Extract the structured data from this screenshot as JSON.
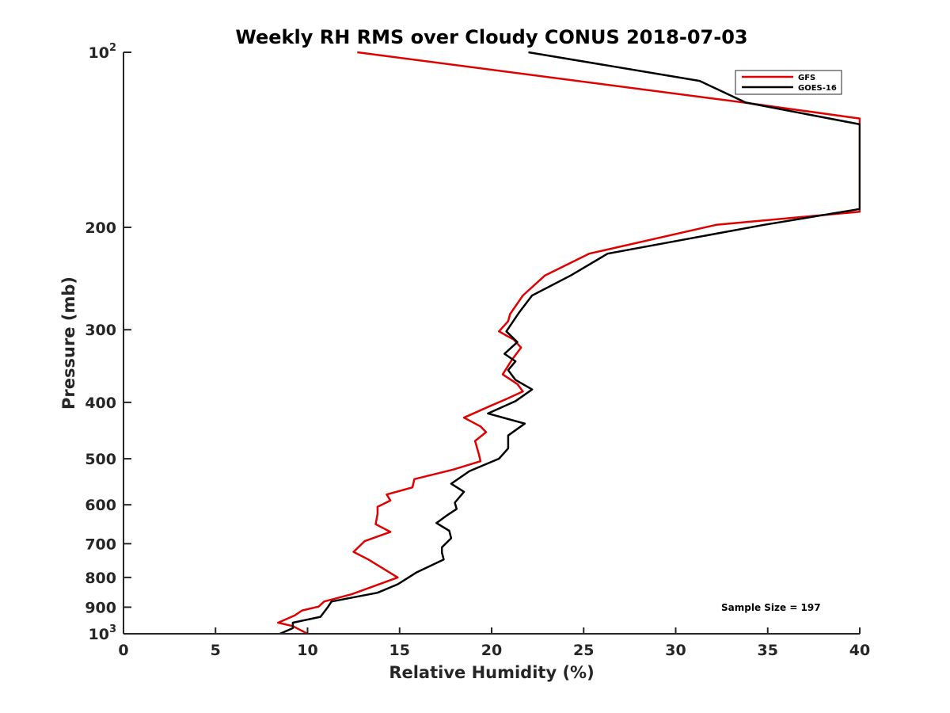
{
  "chart_data": {
    "type": "line",
    "title": "Weekly RH RMS over Cloudy CONUS 2018-07-03",
    "xlabel": "Relative Humidity (%)",
    "ylabel": "Pressure (mb)",
    "xlim": [
      0,
      40
    ],
    "ylim": [
      100,
      1000
    ],
    "y_scale": "log",
    "y_reversed": true,
    "x_ticks": [
      "0",
      "5",
      "10",
      "15",
      "20",
      "25",
      "30",
      "35",
      "40"
    ],
    "y_ticks": [
      {
        "value": 100,
        "base": "10",
        "exp": "2"
      },
      {
        "value": 200,
        "label": "200"
      },
      {
        "value": 300,
        "label": "300"
      },
      {
        "value": 400,
        "label": "400"
      },
      {
        "value": 500,
        "label": "500"
      },
      {
        "value": 600,
        "label": "600"
      },
      {
        "value": 700,
        "label": "700"
      },
      {
        "value": 800,
        "label": "800"
      },
      {
        "value": 900,
        "label": "900"
      },
      {
        "value": 1000,
        "base": "10",
        "exp": "3"
      }
    ],
    "legend": {
      "position": "top-right"
    },
    "annotation": "Sample Size = 197",
    "series": [
      {
        "name": "GFS",
        "color": "#e00000",
        "points": [
          [
            12.7,
            100
          ],
          [
            33.7,
            122
          ],
          [
            40,
            130
          ],
          [
            40,
            188
          ],
          [
            32.2,
            198
          ],
          [
            25.3,
            222
          ],
          [
            22.9,
            242
          ],
          [
            21.7,
            262
          ],
          [
            21.0,
            282
          ],
          [
            20.9,
            290
          ],
          [
            20.4,
            302
          ],
          [
            21.2,
            312
          ],
          [
            21.6,
            322
          ],
          [
            21.1,
            338
          ],
          [
            20.6,
            358
          ],
          [
            21.4,
            372
          ],
          [
            21.7,
            383
          ],
          [
            20.7,
            396
          ],
          [
            19.9,
            406
          ],
          [
            18.5,
            425
          ],
          [
            19.4,
            440
          ],
          [
            19.7,
            450
          ],
          [
            19.1,
            466
          ],
          [
            19.3,
            490
          ],
          [
            19.4,
            505
          ],
          [
            17.9,
            522
          ],
          [
            15.8,
            542
          ],
          [
            15.7,
            560
          ],
          [
            14.3,
            576
          ],
          [
            14.5,
            590
          ],
          [
            13.8,
            605
          ],
          [
            13.8,
            622
          ],
          [
            13.7,
            648
          ],
          [
            14.5,
            668
          ],
          [
            13.1,
            693
          ],
          [
            12.5,
            723
          ],
          [
            13.3,
            745
          ],
          [
            14.9,
            800
          ],
          [
            12.4,
            855
          ],
          [
            10.9,
            880
          ],
          [
            10.6,
            898
          ],
          [
            9.7,
            912
          ],
          [
            9.3,
            930
          ],
          [
            8.4,
            957
          ],
          [
            9.2,
            970
          ],
          [
            10.0,
            1000
          ]
        ]
      },
      {
        "name": "GOES-16",
        "color": "#000000",
        "points": [
          [
            22.0,
            100
          ],
          [
            31.3,
            112
          ],
          [
            33.8,
            122
          ],
          [
            40,
            133
          ],
          [
            40,
            186
          ],
          [
            34.8,
            198
          ],
          [
            26.3,
            222
          ],
          [
            24.3,
            242
          ],
          [
            22.2,
            262
          ],
          [
            21.5,
            280
          ],
          [
            20.8,
            302
          ],
          [
            21.4,
            315
          ],
          [
            20.7,
            330
          ],
          [
            21.3,
            340
          ],
          [
            20.9,
            352
          ],
          [
            21.3,
            366
          ],
          [
            22.2,
            380
          ],
          [
            21.3,
            398
          ],
          [
            19.8,
            418
          ],
          [
            21.8,
            435
          ],
          [
            20.9,
            456
          ],
          [
            20.9,
            480
          ],
          [
            20.4,
            500
          ],
          [
            18.8,
            525
          ],
          [
            17.8,
            552
          ],
          [
            18.5,
            570
          ],
          [
            18.0,
            595
          ],
          [
            18.1,
            610
          ],
          [
            17.5,
            628
          ],
          [
            17.0,
            645
          ],
          [
            17.7,
            665
          ],
          [
            17.8,
            685
          ],
          [
            17.3,
            710
          ],
          [
            17.3,
            725
          ],
          [
            17.4,
            745
          ],
          [
            15.9,
            785
          ],
          [
            14.9,
            822
          ],
          [
            13.8,
            850
          ],
          [
            11.3,
            880
          ],
          [
            11.1,
            900
          ],
          [
            10.7,
            935
          ],
          [
            9.2,
            957
          ],
          [
            9.2,
            978
          ],
          [
            8.5,
            1000
          ]
        ]
      }
    ]
  }
}
